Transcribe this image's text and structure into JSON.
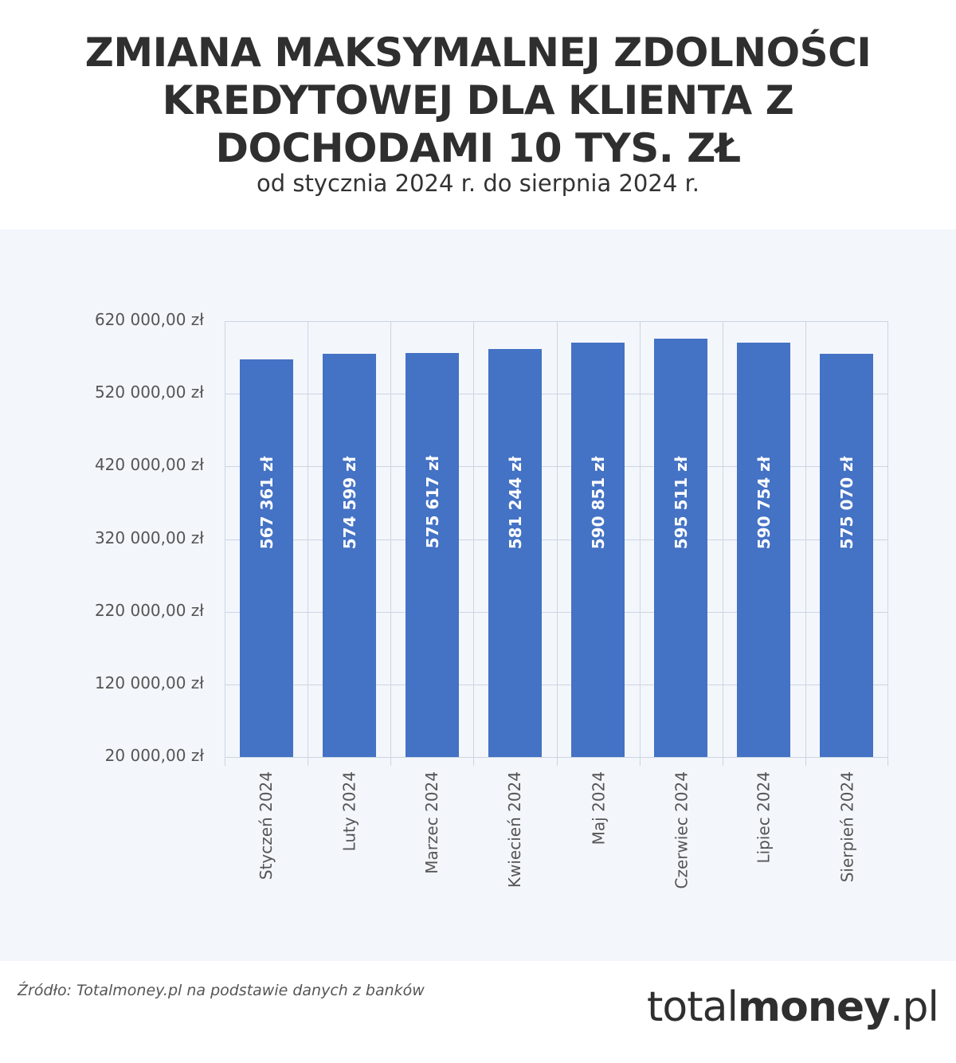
{
  "header": {
    "title_lines": [
      "ZMIANA MAKSYMALNEJ ZDOLNOŚCI",
      "KREDYTOWEJ DLA KLIENTA Z",
      "DOCHODAMI 10 TYS. ZŁ"
    ],
    "subtitle": "od stycznia 2024 r. do sierpnia 2024 r."
  },
  "footer": {
    "source": "Źródło: Totalmoney.pl na podstawie danych z banków",
    "logo_light": "total",
    "logo_bold": "money",
    "logo_suffix": ".pl"
  },
  "colors": {
    "bar": "#4472c4",
    "panel_background": "#f3f6fb",
    "grid": "#cbd6e2",
    "bar_label": "#ffffff"
  },
  "chart_data": {
    "type": "bar",
    "title": "ZMIANA MAKSYMALNEJ ZDOLNOŚCI KREDYTOWEJ DLA KLIENTA Z DOCHODAMI 10 TYS. ZŁ",
    "subtitle": "od stycznia 2024 r. do sierpnia 2024 r.",
    "xlabel": "",
    "ylabel": "",
    "categories": [
      "Styczeń 2024",
      "Luty 2024",
      "Marzec 2024",
      "Kwiecień 2024",
      "Maj 2024",
      "Czerwiec 2024",
      "Lipiec 2024",
      "Sierpień 2024"
    ],
    "values": [
      567361,
      574599,
      575617,
      581244,
      590851,
      595511,
      590754,
      575070
    ],
    "data_labels": [
      "567 361 zł",
      "574 599 zł",
      "575 617 zł",
      "581 244 zł",
      "590 851 zł",
      "595 511 zł",
      "590 754 zł",
      "575 070 zł"
    ],
    "ylim": [
      20000,
      620000
    ],
    "yticks": [
      620000,
      520000,
      420000,
      320000,
      220000,
      120000,
      20000
    ],
    "ytick_labels": [
      "620 000,00 zł",
      "520 000,00 zł",
      "420 000,00 zł",
      "320 000,00 zł",
      "220 000,00 zł",
      "120 000,00 zł",
      "20 000,00 zł"
    ],
    "grid": true,
    "legend": null,
    "orientation": "vertical",
    "data_label_rotation": -90,
    "xtick_rotation": -90
  }
}
